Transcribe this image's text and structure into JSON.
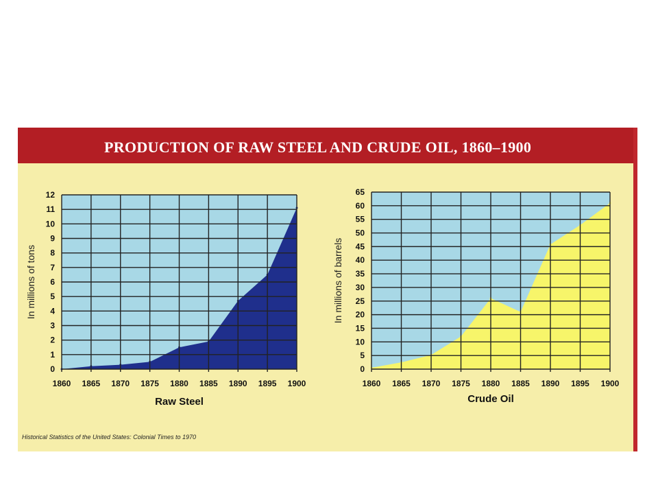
{
  "title": "PRODUCTION OF RAW STEEL AND CRUDE OIL, 1860–1900",
  "source": "Historical Statistics of the United States: Colonial Times to 1970",
  "colors": {
    "banner": "#b31e24",
    "panel": "#f6eeaa",
    "plot_bg": "#a8d8e6",
    "grid": "#222222",
    "steel_fill": "#1f2f8c",
    "oil_fill": "#f7f56a"
  },
  "chart_data": [
    {
      "type": "area",
      "title": "",
      "xlabel": "Raw Steel",
      "ylabel": "In millions of tons",
      "x": [
        1860,
        1865,
        1870,
        1875,
        1880,
        1885,
        1890,
        1895,
        1900
      ],
      "y": [
        0,
        0.2,
        0.3,
        0.5,
        1.5,
        1.9,
        4.7,
        6.5,
        11.1
      ],
      "xlim": [
        1860,
        1900
      ],
      "ylim": [
        0,
        12
      ],
      "xticks": [
        "1860",
        "1865",
        "1870",
        "1875",
        "1880",
        "1885",
        "1890",
        "1895",
        "1900"
      ],
      "yticks": [
        "0",
        "1",
        "2",
        "3",
        "4",
        "5",
        "6",
        "7",
        "8",
        "9",
        "10",
        "11",
        "12"
      ],
      "grid": true,
      "legend": "none"
    },
    {
      "type": "area",
      "title": "",
      "xlabel": "Crude Oil",
      "ylabel": "In millions of barrels",
      "x": [
        1860,
        1865,
        1870,
        1875,
        1880,
        1885,
        1890,
        1895,
        1900
      ],
      "y": [
        0.5,
        2.5,
        5.2,
        12,
        26,
        21,
        45.8,
        52.9,
        61
      ],
      "xlim": [
        1860,
        1900
      ],
      "ylim": [
        0,
        65
      ],
      "xticks": [
        "1860",
        "1865",
        "1870",
        "1875",
        "1880",
        "1885",
        "1890",
        "1895",
        "1900"
      ],
      "yticks": [
        "0",
        "5",
        "10",
        "15",
        "20",
        "25",
        "30",
        "35",
        "40",
        "45",
        "50",
        "55",
        "60",
        "65"
      ],
      "grid": true,
      "legend": "none"
    }
  ]
}
